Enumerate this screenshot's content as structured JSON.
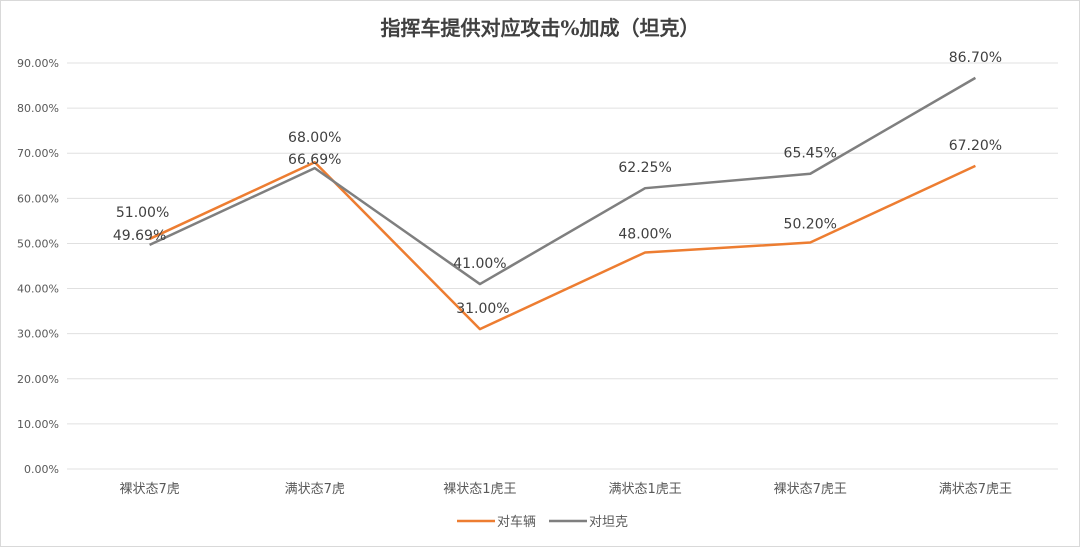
{
  "chart_data": {
    "type": "line",
    "title": "指挥车提供对应攻击%加成（坦克）",
    "categories": [
      "裸状态7虎",
      "满状态7虎",
      "裸状态1虎王",
      "满状态1虎王",
      "裸状态7虎王",
      "满状态7虎王"
    ],
    "ylim": [
      0,
      90
    ],
    "yticks": [
      "0.00%",
      "10.00%",
      "20.00%",
      "30.00%",
      "40.00%",
      "50.00%",
      "60.00%",
      "70.00%",
      "80.00%",
      "90.00%"
    ],
    "grid": true,
    "legend_position": "bottom",
    "series": [
      {
        "name": "对车辆",
        "color": "#ED7D31",
        "values": [
          51.0,
          68.0,
          31.0,
          48.0,
          50.2,
          67.2
        ],
        "labels": [
          "51.00%",
          "68.00%",
          "31.00%",
          "48.00%",
          "50.20%",
          "67.20%"
        ]
      },
      {
        "name": "对坦克",
        "color": "#7F7F7F",
        "values": [
          49.69,
          66.69,
          41.0,
          62.25,
          65.45,
          86.7
        ],
        "labels": [
          "49.69%",
          "66.69%",
          "41.00%",
          "62.25%",
          "65.45%",
          "86.70%"
        ]
      }
    ]
  }
}
